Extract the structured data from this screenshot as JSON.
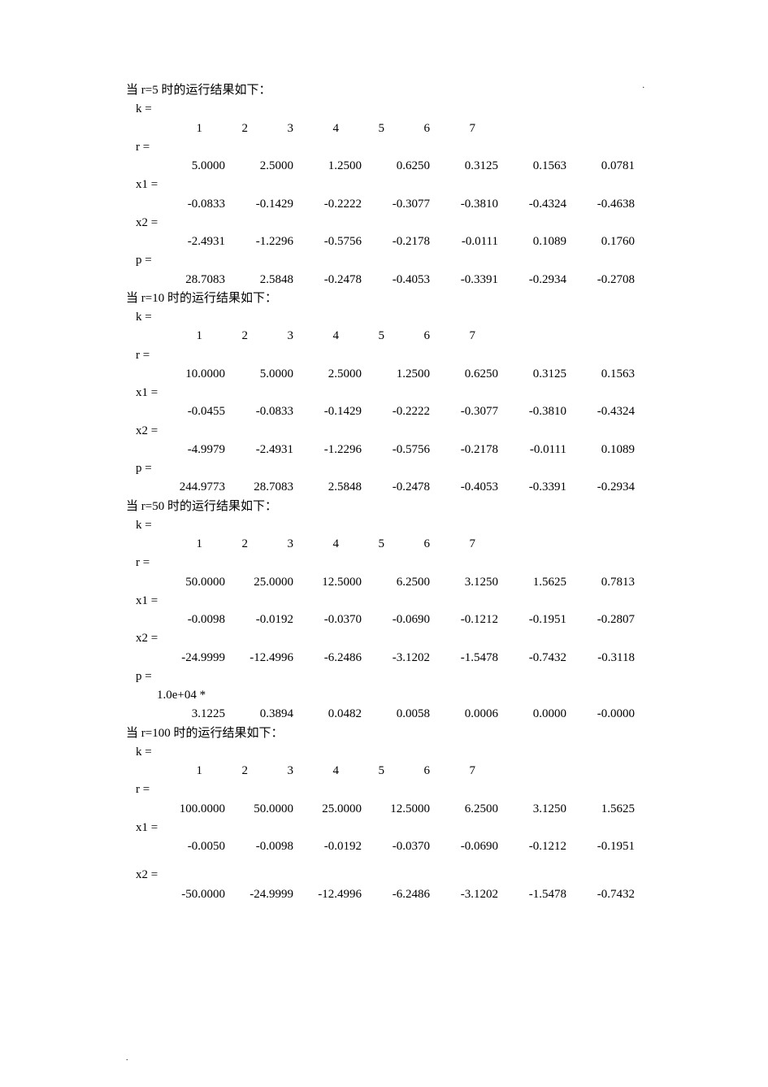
{
  "sections": [
    {
      "header": "当 r=5 时的运行结果如下：",
      "vars": [
        {
          "label": "k =",
          "type": "int",
          "values": [
            "1",
            "2",
            "3",
            "4",
            "5",
            "6",
            "7"
          ]
        },
        {
          "label": "r =",
          "type": "float",
          "values": [
            "5.0000",
            "2.5000",
            "1.2500",
            "0.6250",
            "0.3125",
            "0.1563",
            "0.0781"
          ]
        },
        {
          "label": "x1 =",
          "type": "float",
          "values": [
            "-0.0833",
            "-0.1429",
            "-0.2222",
            "-0.3077",
            "-0.3810",
            "-0.4324",
            "-0.4638"
          ]
        },
        {
          "label": "x2 =",
          "type": "float",
          "values": [
            "-2.4931",
            "-1.2296",
            "-0.5756",
            "-0.2178",
            "-0.0111",
            "0.1089",
            "0.1760"
          ]
        },
        {
          "label": "p =",
          "type": "float",
          "values": [
            "28.7083",
            "2.5848",
            "-0.2478",
            "-0.4053",
            "-0.3391",
            "-0.2934",
            "-0.2708"
          ]
        }
      ]
    },
    {
      "header": "当 r=10 时的运行结果如下：",
      "vars": [
        {
          "label": "k =",
          "type": "int",
          "values": [
            "1",
            "2",
            "3",
            "4",
            "5",
            "6",
            "7"
          ]
        },
        {
          "label": "r =",
          "type": "float",
          "values": [
            "10.0000",
            "5.0000",
            "2.5000",
            "1.2500",
            "0.6250",
            "0.3125",
            "0.1563"
          ]
        },
        {
          "label": "x1 =",
          "type": "float",
          "values": [
            "-0.0455",
            "-0.0833",
            "-0.1429",
            "-0.2222",
            "-0.3077",
            "-0.3810",
            "-0.4324"
          ]
        },
        {
          "label": "x2 =",
          "type": "float",
          "values": [
            "-4.9979",
            "-2.4931",
            "-1.2296",
            "-0.5756",
            "-0.2178",
            "-0.0111",
            "0.1089"
          ]
        },
        {
          "label": "p =",
          "type": "float",
          "values": [
            "244.9773",
            "28.7083",
            "2.5848",
            "-0.2478",
            "-0.4053",
            "-0.3391",
            "-0.2934"
          ]
        }
      ]
    },
    {
      "header": "当 r=50 时的运行结果如下：",
      "vars": [
        {
          "label": "k =",
          "type": "int",
          "values": [
            "1",
            "2",
            "3",
            "4",
            "5",
            "6",
            "7"
          ]
        },
        {
          "label": "r =",
          "type": "float",
          "values": [
            "50.0000",
            "25.0000",
            "12.5000",
            "6.2500",
            "3.1250",
            "1.5625",
            "0.7813"
          ]
        },
        {
          "label": "x1 =",
          "type": "float",
          "values": [
            "-0.0098",
            "-0.0192",
            "-0.0370",
            "-0.0690",
            "-0.1212",
            "-0.1951",
            "-0.2807"
          ]
        },
        {
          "label": "x2 =",
          "type": "float",
          "values": [
            "-24.9999",
            "-12.4996",
            "-6.2486",
            "-3.1202",
            "-1.5478",
            "-0.7432",
            "-0.3118"
          ]
        },
        {
          "label": "p =",
          "type": "float",
          "scale": "1.0e+04 *",
          "values": [
            "3.1225",
            "0.3894",
            "0.0482",
            "0.0058",
            "0.0006",
            "0.0000",
            "-0.0000"
          ]
        }
      ]
    },
    {
      "header": "当 r=100 时的运行结果如下：",
      "vars": [
        {
          "label": "k =",
          "type": "int",
          "values": [
            "1",
            "2",
            "3",
            "4",
            "5",
            "6",
            "7"
          ]
        },
        {
          "label": "r =",
          "type": "float",
          "values": [
            "100.0000",
            "50.0000",
            "25.0000",
            "12.5000",
            "6.2500",
            "3.1250",
            "1.5625"
          ]
        },
        {
          "label": "x1 =",
          "type": "float",
          "values": [
            "-0.0050",
            "-0.0098",
            "-0.0192",
            "-0.0370",
            "-0.0690",
            "-0.1212",
            "-0.1951"
          ],
          "gap_after": true
        },
        {
          "label": "x2 =",
          "type": "float",
          "values": [
            "-50.0000",
            "-24.9999",
            "-12.4996",
            "-6.2486",
            "-3.1202",
            "-1.5478",
            "-0.7432"
          ]
        }
      ]
    }
  ],
  "corner_tr": ".",
  "corner_bl": ".",
  "colors": {
    "text": "#000000",
    "background": "#ffffff"
  },
  "font": {
    "family": "SimSun / Times New Roman",
    "size_pt": 11
  }
}
